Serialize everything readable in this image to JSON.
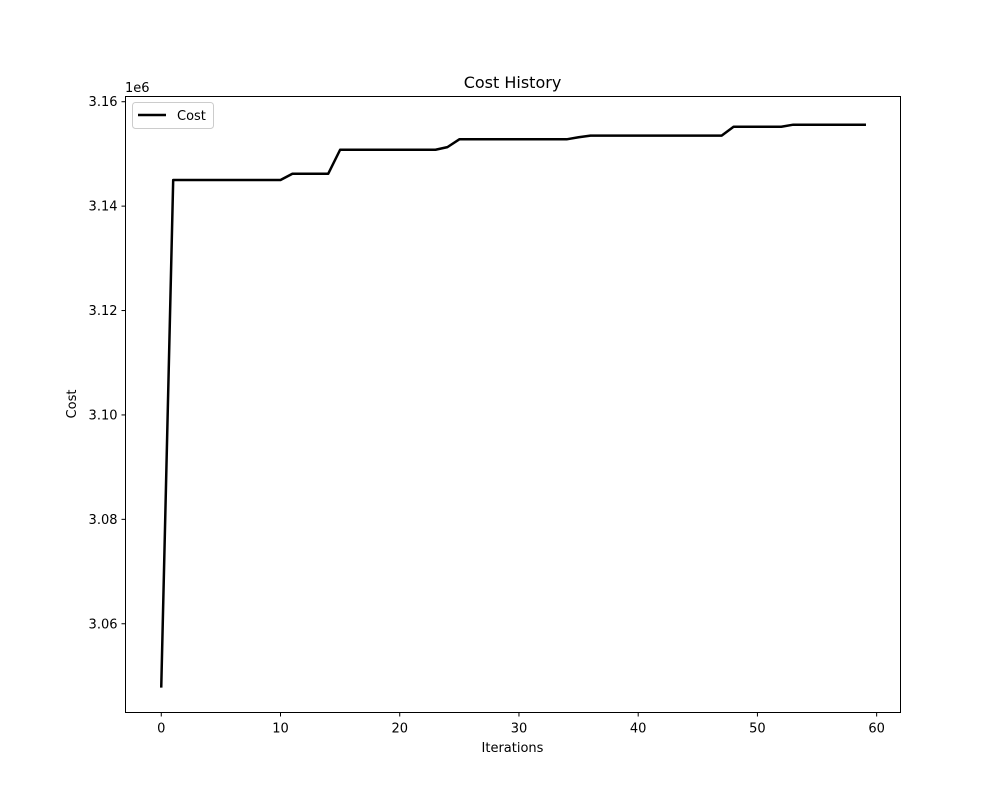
{
  "chart_data": {
    "type": "line",
    "title": "Cost History",
    "xlabel": "Iterations",
    "ylabel": "Cost",
    "y_offset_label": "1e6",
    "y_scale": 1000000,
    "xlim": [
      -3,
      62
    ],
    "ylim": [
      3043000,
      3161000
    ],
    "x_ticks": [
      0,
      10,
      20,
      30,
      40,
      50,
      60
    ],
    "x_tick_labels": [
      "0",
      "10",
      "20",
      "30",
      "40",
      "50",
      "60"
    ],
    "y_ticks": [
      3060000,
      3080000,
      3100000,
      3120000,
      3140000,
      3160000
    ],
    "y_tick_labels": [
      "3.06",
      "3.08",
      "3.10",
      "3.12",
      "3.14",
      "3.16"
    ],
    "grid": false,
    "legend_position": "top-left",
    "series": [
      {
        "name": "Cost",
        "color": "#000000",
        "x": [
          0,
          1,
          2,
          3,
          4,
          5,
          6,
          7,
          8,
          9,
          10,
          11,
          12,
          13,
          14,
          15,
          16,
          17,
          18,
          19,
          20,
          21,
          22,
          23,
          24,
          25,
          26,
          27,
          28,
          29,
          30,
          31,
          32,
          33,
          34,
          35,
          36,
          37,
          38,
          39,
          40,
          41,
          42,
          43,
          44,
          45,
          46,
          47,
          48,
          49,
          50,
          51,
          52,
          53,
          54,
          55,
          56,
          57,
          58,
          59
        ],
        "y": [
          3048000,
          3145000,
          3145000,
          3145000,
          3145000,
          3145000,
          3145000,
          3145000,
          3145000,
          3145000,
          3145000,
          3146200,
          3146200,
          3146200,
          3146200,
          3150800,
          3150800,
          3150800,
          3150800,
          3150800,
          3150800,
          3150800,
          3150800,
          3150800,
          3151300,
          3152800,
          3152800,
          3152800,
          3152800,
          3152800,
          3152800,
          3152800,
          3152800,
          3152800,
          3152800,
          3153200,
          3153500,
          3153500,
          3153500,
          3153500,
          3153500,
          3153500,
          3153500,
          3153500,
          3153500,
          3153500,
          3153500,
          3153500,
          3155200,
          3155200,
          3155200,
          3155200,
          3155200,
          3155600,
          3155600,
          3155600,
          3155600,
          3155600,
          3155600,
          3155600
        ]
      }
    ]
  }
}
